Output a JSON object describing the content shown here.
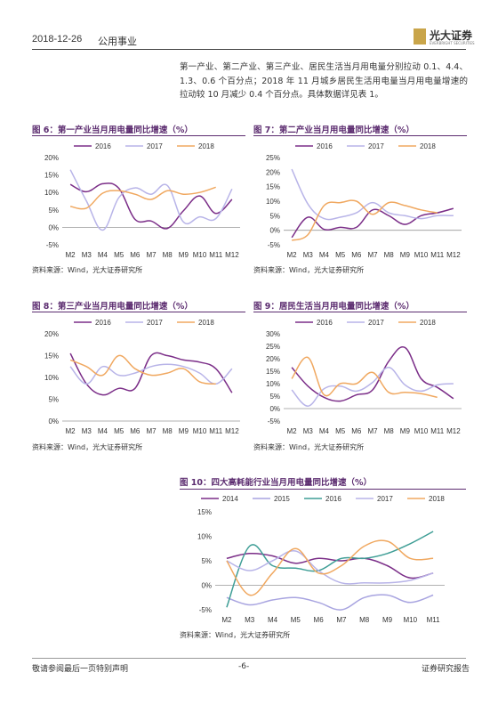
{
  "header": {
    "date": "2018-12-26",
    "sector": "公用事业",
    "logo_text": "光大证券",
    "logo_sub": "EVERBRIGHT SECURITIES"
  },
  "intro": {
    "text": "第一产业、第二产业、第三产业、居民生活当月用电量分别拉动 0.1、4.4、1.3、0.6 个百分点；2018 年 11 月城乡居民生活用电量当月用电量增速的拉动较 10 月减少 0.4 个百分点。具体数据详见表 1。"
  },
  "source_label": "资料来源：Wind，光大证券研究所",
  "footer": {
    "left": "敬请参阅最后一页特别声明",
    "page": "-6-",
    "right": "证券研究报告"
  },
  "colors": {
    "2014": "#7b2e88",
    "2015": "#a8a4e0",
    "2016_five": "#3f9e96",
    "2016": "#7b2e88",
    "2017": "#b8b4e8",
    "2018": "#f0a860",
    "title": "#5b2b6f"
  },
  "chart_data": [
    {
      "type": "line",
      "title": "图 6：第一产业当月用电量同比增速（%）",
      "categories": [
        "M2",
        "M3",
        "M4",
        "M5",
        "M6",
        "M7",
        "M8",
        "M9",
        "M10",
        "M11",
        "M12"
      ],
      "yticks": [
        "20%",
        "15%",
        "10%",
        "5%",
        "0%",
        "-5%"
      ],
      "ylim": [
        -5,
        20
      ],
      "series": [
        {
          "name": "2016",
          "color_key": "2016",
          "values": [
            12.3,
            10.2,
            12.5,
            11.2,
            2.3,
            1.8,
            -0.3,
            4.8,
            9.0,
            4.0,
            8.0
          ]
        },
        {
          "name": "2017",
          "color_key": "2017",
          "values": [
            16.5,
            7.5,
            -0.8,
            8.5,
            11.3,
            9.5,
            12.0,
            1.5,
            3.0,
            2.5,
            11.0
          ]
        },
        {
          "name": "2018",
          "color_key": "2018",
          "values": [
            6.0,
            5.5,
            9.8,
            10.5,
            9.5,
            8.0,
            10.5,
            9.5,
            10.0,
            11.5,
            null
          ]
        }
      ]
    },
    {
      "type": "line",
      "title": "图 7：第二产业当月用电量同比增速（%）",
      "categories": [
        "M2",
        "M3",
        "M4",
        "M5",
        "M6",
        "M7",
        "M8",
        "M9",
        "M10",
        "M11",
        "M12"
      ],
      "yticks": [
        "25%",
        "20%",
        "15%",
        "10%",
        "5%",
        "0%",
        "-5%"
      ],
      "ylim": [
        -5,
        25
      ],
      "series": [
        {
          "name": "2016",
          "color_key": "2016",
          "values": [
            -2.5,
            4.5,
            0.3,
            1.0,
            1.0,
            7.0,
            5.0,
            2.0,
            5.0,
            6.0,
            7.5
          ]
        },
        {
          "name": "2017",
          "color_key": "2017",
          "values": [
            21.0,
            9.0,
            4.0,
            4.5,
            6.0,
            9.5,
            6.0,
            5.0,
            4.0,
            5.0,
            5.0
          ]
        },
        {
          "name": "2018",
          "color_key": "2018",
          "values": [
            -3.5,
            -1.5,
            8.5,
            9.5,
            10.0,
            5.5,
            9.5,
            8.5,
            7.0,
            6.0,
            null
          ]
        }
      ]
    },
    {
      "type": "line",
      "title": "图 8：第三产业当月用电量同比增速（%）",
      "categories": [
        "M2",
        "M3",
        "M4",
        "M5",
        "M6",
        "M7",
        "M8",
        "M9",
        "M10",
        "M11",
        "M12"
      ],
      "yticks": [
        "20%",
        "15%",
        "10%",
        "5%",
        "0%"
      ],
      "ylim": [
        0,
        20
      ],
      "series": [
        {
          "name": "2016",
          "color_key": "2016",
          "values": [
            15.5,
            8.5,
            6.0,
            7.5,
            7.5,
            15.0,
            15.0,
            14.0,
            13.5,
            12.0,
            6.5
          ]
        },
        {
          "name": "2017",
          "color_key": "2017",
          "values": [
            12.5,
            8.5,
            12.5,
            10.5,
            11.0,
            12.5,
            13.0,
            12.5,
            11.0,
            8.5,
            12.0
          ]
        },
        {
          "name": "2018",
          "color_key": "2018",
          "values": [
            14.0,
            12.5,
            10.5,
            15.0,
            12.0,
            10.5,
            11.0,
            12.0,
            9.0,
            8.5,
            null
          ]
        }
      ]
    },
    {
      "type": "line",
      "title": "图 9：居民生活当月用电量同比增速（%）",
      "categories": [
        "M2",
        "M3",
        "M4",
        "M5",
        "M6",
        "M7",
        "M8",
        "M9",
        "M10",
        "M11",
        "M12"
      ],
      "yticks": [
        "30%",
        "25%",
        "20%",
        "15%",
        "10%",
        "5%",
        "0%",
        "-5%"
      ],
      "ylim": [
        -5,
        30
      ],
      "series": [
        {
          "name": "2016",
          "color_key": "2016",
          "values": [
            16.5,
            9.0,
            4.5,
            3.0,
            5.5,
            7.5,
            19.0,
            24.5,
            12.0,
            8.5,
            4.0
          ]
        },
        {
          "name": "2017",
          "color_key": "2017",
          "values": [
            7.5,
            1.0,
            8.0,
            9.0,
            7.0,
            10.5,
            16.5,
            9.5,
            7.0,
            9.5,
            10.0
          ]
        },
        {
          "name": "2018",
          "color_key": "2018",
          "values": [
            12.0,
            20.5,
            5.5,
            10.0,
            10.0,
            14.5,
            6.5,
            6.5,
            6.0,
            4.5,
            null
          ]
        }
      ]
    },
    {
      "type": "line",
      "title": "图 10：四大高耗能行业当月用电量同比增速（%）",
      "categories": [
        "M2",
        "M3",
        "M4",
        "M5",
        "M6",
        "M7",
        "M8",
        "M9",
        "M10",
        "M11"
      ],
      "yticks": [
        "15%",
        "10%",
        "5%",
        "0%",
        "-5%"
      ],
      "ylim": [
        -5,
        15
      ],
      "series": [
        {
          "name": "2014",
          "color_key": "2014",
          "values": [
            5.5,
            6.5,
            6.0,
            4.5,
            5.5,
            5.0,
            5.5,
            4.0,
            1.5,
            2.5
          ]
        },
        {
          "name": "2015",
          "color_key": "2015",
          "values": [
            -2.5,
            -4.0,
            -3.0,
            -2.5,
            -3.5,
            -5.0,
            -2.5,
            -2.0,
            -3.5,
            -2.0
          ]
        },
        {
          "name": "2016",
          "color_key": "2016_five",
          "values": [
            -4.5,
            8.0,
            4.0,
            3.5,
            3.0,
            5.5,
            5.5,
            6.5,
            8.5,
            11.0
          ]
        },
        {
          "name": "2017",
          "color_key": "2017",
          "values": [
            5.0,
            3.0,
            5.0,
            7.0,
            3.0,
            0.5,
            0.5,
            0.5,
            1.0,
            2.5
          ]
        },
        {
          "name": "2018",
          "color_key": "2018",
          "values": [
            5.0,
            -2.0,
            2.5,
            7.5,
            2.5,
            4.0,
            8.0,
            9.0,
            5.5,
            5.5
          ]
        }
      ]
    }
  ]
}
